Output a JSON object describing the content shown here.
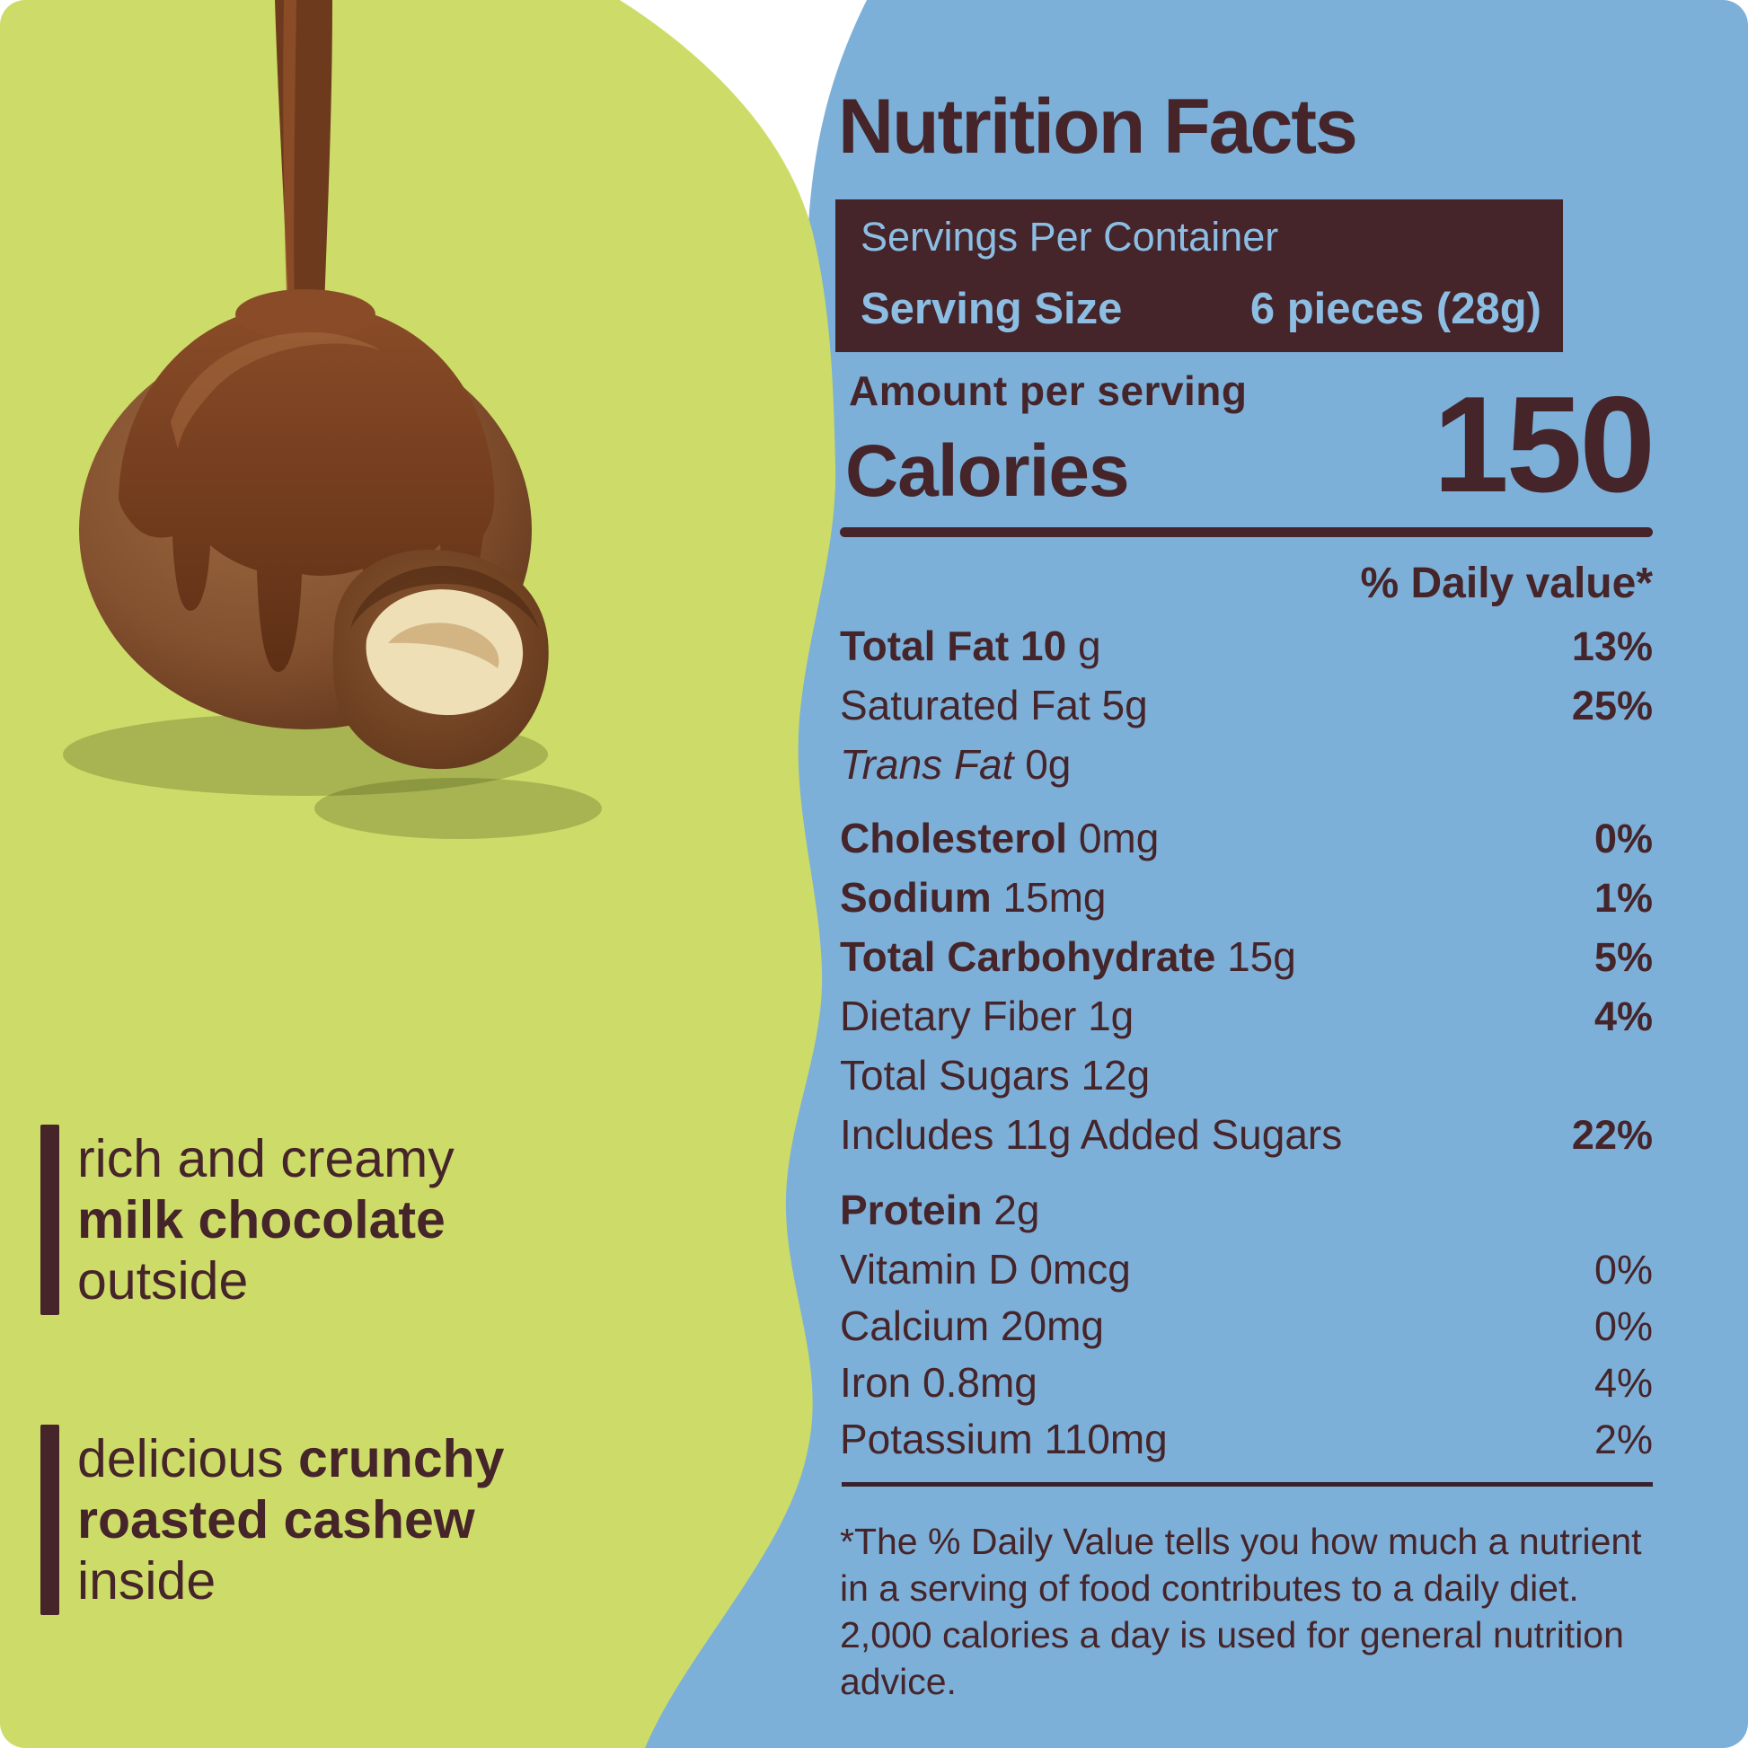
{
  "colors": {
    "left_background": "#cddc69",
    "right_background": "#7db0d8",
    "text_dark_brown": "#45242a",
    "panel_box_background": "#45242a",
    "panel_box_text": "#8cbee4",
    "page_corner": "#ffffff"
  },
  "title": "Nutrition Facts",
  "serving_panel": {
    "servings_line": "Servings Per Container",
    "serving_size_label": "Serving Size",
    "serving_size_value": "6 pieces (28g)"
  },
  "calories": {
    "amount_label": "Amount per serving",
    "calories_label": "Calories",
    "calories_value": "150"
  },
  "daily_value_header": "% Daily value*",
  "nutrition_rows": [
    {
      "segments": [
        {
          "t": "Total Fat 10",
          "b": true
        },
        {
          "t": " g",
          "b": false
        }
      ],
      "pct": "13%",
      "pct_bold": true,
      "gap_before": 0
    },
    {
      "segments": [
        {
          "t": "Saturated Fat 5g",
          "b": false
        }
      ],
      "pct": "25%",
      "pct_bold": true,
      "gap_before": 0
    },
    {
      "segments": [
        {
          "t": "Trans Fat",
          "b": false,
          "i": true
        },
        {
          "t": " 0g",
          "b": false
        }
      ],
      "pct": "",
      "pct_bold": false,
      "gap_before": 0
    },
    {
      "segments": [
        {
          "t": "Cholesterol",
          "b": true
        },
        {
          "t": " 0mg",
          "b": false
        }
      ],
      "pct": "0%",
      "pct_bold": true,
      "gap_before": 16
    },
    {
      "segments": [
        {
          "t": "Sodium",
          "b": true
        },
        {
          "t": " 15mg",
          "b": false
        }
      ],
      "pct": "1%",
      "pct_bold": true,
      "gap_before": 0
    },
    {
      "segments": [
        {
          "t": "Total Carbohydrate",
          "b": true
        },
        {
          "t": " 15g",
          "b": false
        }
      ],
      "pct": "5%",
      "pct_bold": true,
      "gap_before": 0
    },
    {
      "segments": [
        {
          "t": "Dietary Fiber 1g",
          "b": false
        }
      ],
      "pct": "4%",
      "pct_bold": true,
      "gap_before": 0
    },
    {
      "segments": [
        {
          "t": "Total Sugars 12g",
          "b": false
        }
      ],
      "pct": "",
      "pct_bold": false,
      "gap_before": 0
    },
    {
      "segments": [
        {
          "t": "Includes 11g Added Sugars",
          "b": false
        }
      ],
      "pct": "22%",
      "pct_bold": true,
      "gap_before": 0
    },
    {
      "segments": [
        {
          "t": "Protein",
          "b": true
        },
        {
          "t": " 2g",
          "b": false
        }
      ],
      "pct": "",
      "pct_bold": false,
      "gap_before": 18
    },
    {
      "segments": [
        {
          "t": "Vitamin D 0mcg",
          "b": false
        }
      ],
      "pct": "0%",
      "pct_bold": false,
      "gap_before": 0,
      "compact": true
    },
    {
      "segments": [
        {
          "t": "Calcium 20mg",
          "b": false
        }
      ],
      "pct": "0%",
      "pct_bold": false,
      "gap_before": 0,
      "compact": true
    },
    {
      "segments": [
        {
          "t": "Iron 0.8mg",
          "b": false
        }
      ],
      "pct": "4%",
      "pct_bold": false,
      "gap_before": 0,
      "compact": true
    },
    {
      "segments": [
        {
          "t": "Potassium 110mg",
          "b": false
        }
      ],
      "pct": "2%",
      "pct_bold": false,
      "gap_before": 0,
      "compact": true
    }
  ],
  "footnote": "*The % Daily Value tells you how much a nutrient in a serving of food contributes to a daily diet. 2,000 calories a day is used for general nutrition advice.",
  "left_callouts": [
    {
      "lines": [
        [
          {
            "t": "rich and creamy",
            "b": false
          }
        ],
        [
          {
            "t": "milk chocolate",
            "b": true
          }
        ],
        [
          {
            "t": "outside",
            "b": false
          }
        ]
      ]
    },
    {
      "lines": [
        [
          {
            "t": "delicious ",
            "b": false
          },
          {
            "t": "crunchy",
            "b": true
          }
        ],
        [
          {
            "t": "roasted cashew",
            "b": true
          }
        ],
        [
          {
            "t": "inside",
            "b": false
          }
        ]
      ]
    }
  ],
  "illustration": "chocolate-covered cashew with melted chocolate pour and cut piece showing cashew inside"
}
